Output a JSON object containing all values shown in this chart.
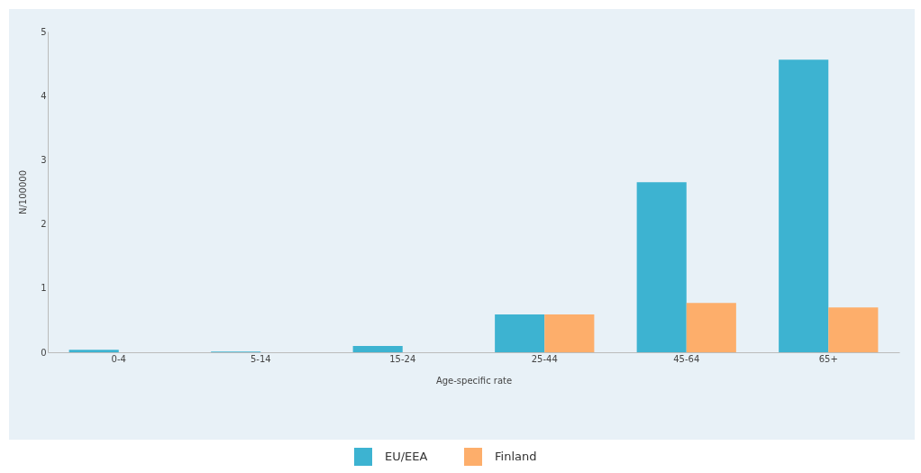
{
  "chart_data": {
    "type": "bar",
    "xlabel": "Age-specific rate",
    "ylabel": "N/100000",
    "categories": [
      "0-4",
      "5-14",
      "15-24",
      "25-44",
      "45-64",
      "65+"
    ],
    "series": [
      {
        "name": "EU/EEA",
        "color": "#3db3d1",
        "values": [
          0.04,
          0.01,
          0.1,
          0.59,
          2.65,
          4.56
        ]
      },
      {
        "name": "Finland",
        "color": "#fdae6b",
        "values": [
          0,
          0,
          0,
          0.59,
          0.77,
          0.7
        ]
      }
    ],
    "ylim": [
      0,
      5
    ],
    "yticks": [
      0,
      1,
      2,
      3,
      4,
      5
    ],
    "grid": false,
    "legend": "bottom"
  }
}
